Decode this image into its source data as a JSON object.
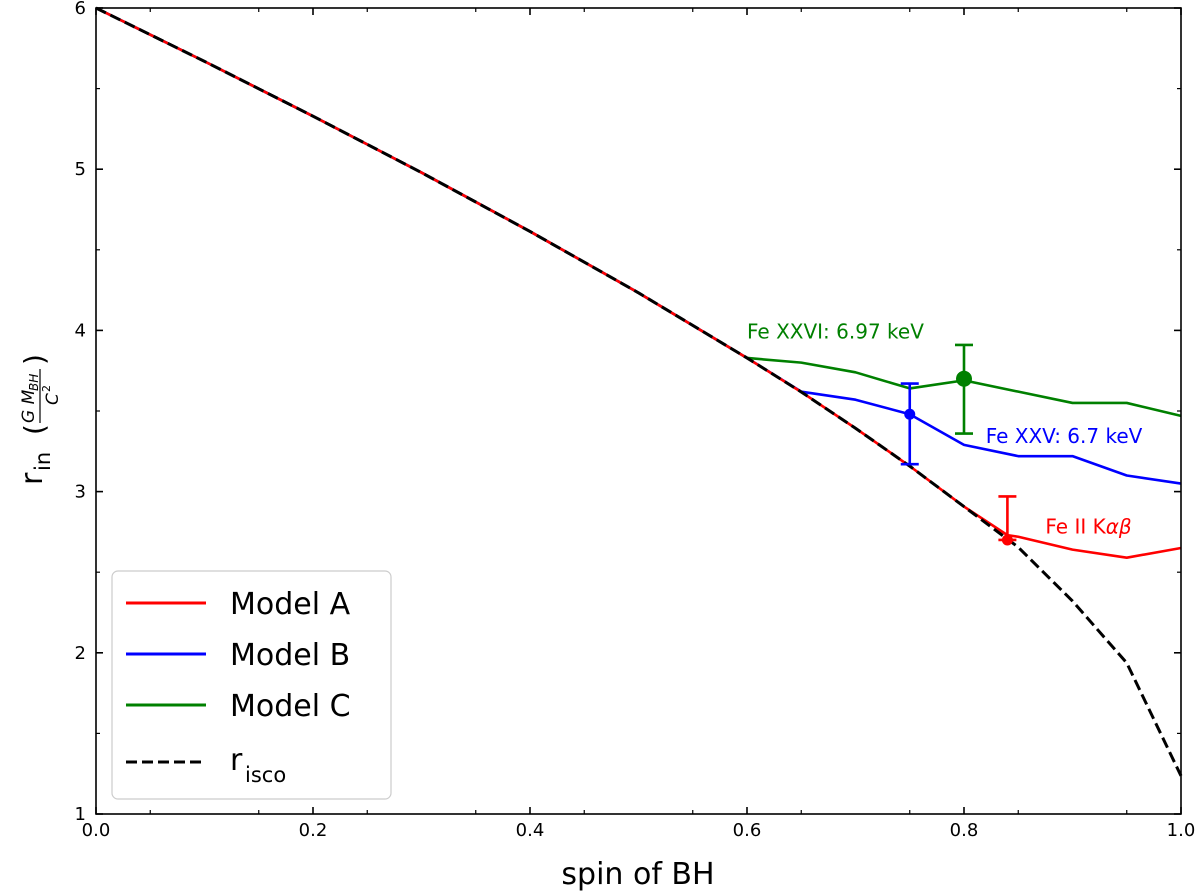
{
  "chart_data": {
    "type": "line",
    "xlabel": "spin of BH",
    "ylabel": {
      "main": "r",
      "sub": "in",
      "fraction_numerator": "G M",
      "fraction_numerator_sub": "BH",
      "fraction_denominator": "C",
      "fraction_denominator_sup": "2",
      "open_paren": "(",
      "close_paren": ")"
    },
    "xlim": [
      0.0,
      1.0
    ],
    "ylim": [
      1,
      6
    ],
    "xticks": [
      0.0,
      0.2,
      0.4,
      0.6,
      0.8,
      1.0
    ],
    "xtick_labels": [
      "0.0",
      "0.2",
      "0.4",
      "0.6",
      "0.8",
      "1.0"
    ],
    "yticks": [
      1,
      2,
      3,
      4,
      5,
      6
    ],
    "ytick_labels": [
      "1",
      "2",
      "3",
      "4",
      "5",
      "6"
    ],
    "grid": false,
    "legend_position": "lower-left",
    "series": [
      {
        "name": "Model A",
        "color": "#ff0000",
        "style": "solid",
        "x": [
          0.0,
          0.1,
          0.2,
          0.3,
          0.4,
          0.5,
          0.6,
          0.65,
          0.7,
          0.75,
          0.8,
          0.84,
          0.85,
          0.9,
          0.95,
          1.0
        ],
        "y": [
          6.0,
          5.669,
          5.329,
          4.979,
          4.614,
          4.233,
          3.829,
          3.618,
          3.393,
          3.158,
          2.907,
          2.73,
          2.72,
          2.64,
          2.59,
          2.65
        ]
      },
      {
        "name": "Model B",
        "color": "#0000ff",
        "style": "solid",
        "x": [
          0.0,
          0.1,
          0.2,
          0.3,
          0.4,
          0.5,
          0.6,
          0.65,
          0.7,
          0.75,
          0.8,
          0.85,
          0.9,
          0.95,
          1.0
        ],
        "y": [
          6.0,
          5.669,
          5.329,
          4.979,
          4.614,
          4.233,
          3.829,
          3.62,
          3.57,
          3.48,
          3.29,
          3.22,
          3.22,
          3.1,
          3.05
        ]
      },
      {
        "name": "Model C",
        "color": "#008000",
        "style": "solid",
        "x": [
          0.0,
          0.1,
          0.2,
          0.3,
          0.4,
          0.5,
          0.6,
          0.65,
          0.7,
          0.75,
          0.8,
          0.85,
          0.9,
          0.95,
          1.0
        ],
        "y": [
          6.0,
          5.669,
          5.329,
          4.979,
          4.614,
          4.233,
          3.829,
          3.8,
          3.74,
          3.64,
          3.69,
          3.62,
          3.55,
          3.55,
          3.47
        ]
      },
      {
        "name": "r",
        "name_sub": "isco",
        "color": "#000000",
        "style": "dashed",
        "x": [
          0.0,
          0.1,
          0.2,
          0.3,
          0.4,
          0.5,
          0.6,
          0.65,
          0.7,
          0.75,
          0.8,
          0.85,
          0.9,
          0.95,
          1.0
        ],
        "y": [
          6.0,
          5.669,
          5.329,
          4.979,
          4.614,
          4.233,
          3.829,
          3.618,
          3.393,
          3.158,
          2.907,
          2.655,
          2.321,
          1.937,
          1.237
        ]
      }
    ],
    "error_points": [
      {
        "series": "Model A",
        "color": "#ff0000",
        "x": 0.84,
        "y": 2.7,
        "y_low": 2.7,
        "y_high": 2.97
      },
      {
        "series": "Model B",
        "color": "#0000ff",
        "x": 0.75,
        "y": 3.48,
        "y_low": 3.17,
        "y_high": 3.67
      },
      {
        "series": "Model C",
        "color": "#008000",
        "x": 0.8,
        "y": 3.7,
        "y_low": 3.36,
        "y_high": 3.91
      }
    ],
    "annotations": [
      {
        "text": "Fe XXVI: 6.97 keV",
        "color": "#008000",
        "x": 0.6,
        "y": 3.95,
        "anchor": "start"
      },
      {
        "text": "Fe XXV: 6.7 keV",
        "color": "#0000ff",
        "x": 0.82,
        "y": 3.3,
        "anchor": "start"
      },
      {
        "text": "Fe II K",
        "symbols": "αβ",
        "color": "#ff0000",
        "x": 0.875,
        "y": 2.74,
        "anchor": "start"
      }
    ]
  }
}
